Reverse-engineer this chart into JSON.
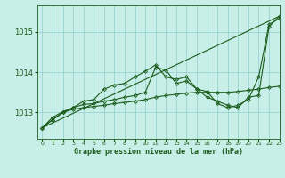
{
  "title": "Graphe pression niveau de la mer (hPa)",
  "background_color": "#c8eee8",
  "grid_color": "#8fcccc",
  "line_color": "#1a5c1a",
  "marker_color": "#1a5c1a",
  "xlim": [
    -0.5,
    23
  ],
  "ylim": [
    1012.35,
    1015.65
  ],
  "yticks": [
    1013,
    1014,
    1015
  ],
  "xticks": [
    0,
    1,
    2,
    3,
    4,
    5,
    6,
    7,
    8,
    9,
    10,
    11,
    12,
    13,
    14,
    15,
    16,
    17,
    18,
    19,
    20,
    21,
    22,
    23
  ],
  "series_with_markers": [
    [
      1012.62,
      1012.82,
      1013.0,
      1013.12,
      1013.2,
      1013.22,
      1013.28,
      1013.32,
      1013.38,
      1013.42,
      1013.5,
      1014.12,
      1014.05,
      1013.72,
      1013.78,
      1013.58,
      1013.52,
      1013.22,
      1013.12,
      1013.18,
      1013.32,
      1013.88,
      1015.18,
      1015.32
    ],
    [
      1012.62,
      1012.82,
      1013.0,
      1013.08,
      1013.12,
      1013.15,
      1013.18,
      1013.22,
      1013.25,
      1013.28,
      1013.32,
      1013.38,
      1013.42,
      1013.45,
      1013.48,
      1013.5,
      1013.5,
      1013.5,
      1013.5,
      1013.52,
      1013.55,
      1013.58,
      1013.62,
      1013.65
    ],
    [
      1012.62,
      1012.88,
      1013.02,
      1013.12,
      1013.28,
      1013.32,
      1013.58,
      1013.68,
      1013.72,
      1013.88,
      1014.02,
      1014.18,
      1013.88,
      1013.82,
      1013.88,
      1013.58,
      1013.38,
      1013.28,
      1013.18,
      1013.12,
      1013.38,
      1013.42,
      1015.12,
      1015.38
    ]
  ],
  "series_straight": [
    1012.62,
    1015.38
  ]
}
